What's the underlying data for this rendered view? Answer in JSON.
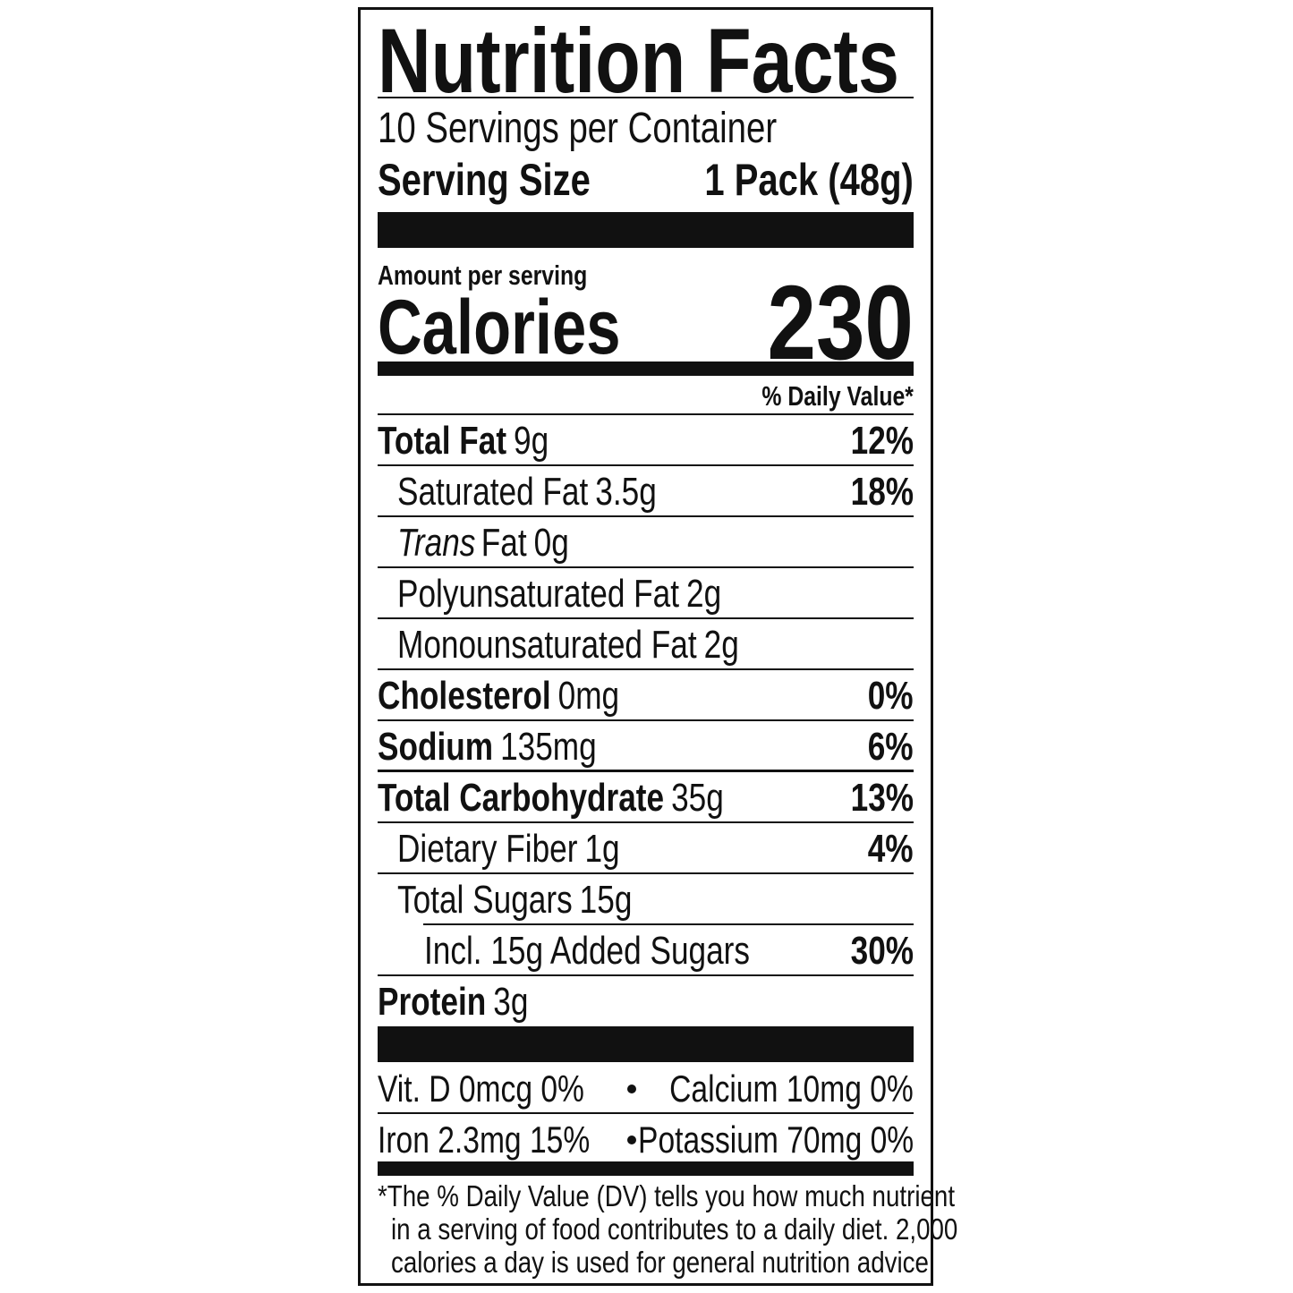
{
  "title": "Nutrition Facts",
  "servings": "10 Servings per Container",
  "serving_size": {
    "label": "Serving Size",
    "value": "1 Pack (48g)"
  },
  "amount_per_serving": "Amount per serving",
  "calories": {
    "label": "Calories",
    "value": 230
  },
  "dv_header": "% Daily Value*",
  "nutrients": [
    {
      "name": "Total Fat",
      "amount": "9g",
      "dv": "12%"
    },
    {
      "name": "Saturated Fat",
      "amount": "3.5g",
      "dv": "18%"
    },
    {
      "name_italic": "Trans",
      "name": "Fat",
      "amount": "0g"
    },
    {
      "name": "Polyunsaturated Fat",
      "amount": "2g"
    },
    {
      "name": "Monounsaturated Fat",
      "amount": "2g"
    },
    {
      "name": "Cholesterol",
      "amount": "0mg",
      "dv": "0%"
    },
    {
      "name": "Sodium",
      "amount": "135mg",
      "dv": "6%"
    },
    {
      "name": "Total Carbohydrate",
      "amount": "35g",
      "dv": "13%"
    },
    {
      "name": "Dietary Fiber",
      "amount": "1g",
      "dv": "4%"
    },
    {
      "name": "Total Sugars",
      "amount": "15g"
    },
    {
      "name": "Incl. 15g Added Sugars",
      "dv": "30%"
    },
    {
      "name": "Protein",
      "amount": "3g"
    }
  ],
  "vitamins": [
    [
      "Vit. D 0mcg 0%",
      "Calcium 10mg 0%"
    ],
    [
      "Iron 2.3mg 15%",
      "Potassium 70mg 0%"
    ]
  ],
  "footnote": [
    "*The % Daily Value (DV) tells you how much nutrient",
    "in a serving of food contributes to a daily diet. 2,000",
    "calories a day is used for general nutrition advice"
  ]
}
